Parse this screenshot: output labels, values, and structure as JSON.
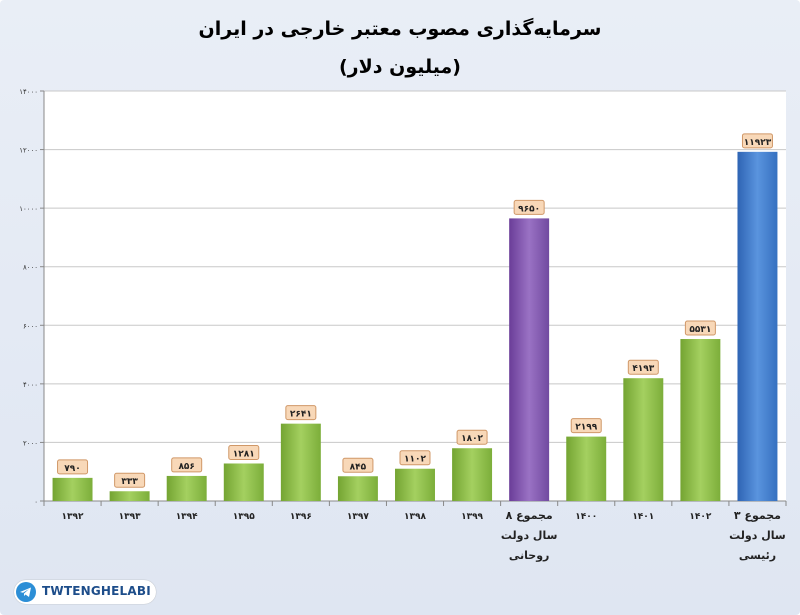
{
  "chart_data": {
    "type": "bar",
    "title": "سرمایه‌گذاری مصوب معتبر خارجی در ایران",
    "subtitle": "(میلیون دلار)",
    "categories": [
      "۱۳۹۲",
      "۱۳۹۳",
      "۱۳۹۴",
      "۱۳۹۵",
      "۱۳۹۶",
      "۱۳۹۷",
      "۱۳۹۸",
      "۱۳۹۹",
      "مجموع ۸ سال دولت روحانی",
      "۱۴۰۰",
      "۱۴۰۱",
      "۱۴۰۲",
      "مجموع ۳ سال دولت رئیسی"
    ],
    "values": [
      790,
      333,
      856,
      1281,
      2641,
      845,
      1102,
      1802,
      9650,
      2199,
      4193,
      5531,
      11923
    ],
    "data_labels": [
      "۷۹۰",
      "۳۳۳",
      "۸۵۶",
      "۱۲۸۱",
      "۲۶۴۱",
      "۸۴۵",
      "۱۱۰۲",
      "۱۸۰۲",
      "۹۶۵۰",
      "۲۱۹۹",
      "۴۱۹۳",
      "۵۵۳۱",
      "۱۱۹۲۳"
    ],
    "ylim": [
      0,
      14000
    ],
    "yticks": [
      0,
      2000,
      4000,
      6000,
      8000,
      10000,
      12000,
      14000
    ],
    "ytick_labels": [
      "۰",
      "۲۰۰۰",
      "۴۰۰۰",
      "۶۰۰۰",
      "۸۰۰۰",
      "۱۰۰۰۰",
      "۱۲۰۰۰",
      "۱۴۰۰۰"
    ],
    "grid": true,
    "colors": {
      "regular": "#8cba48",
      "rouhani_total": "#7d52a8",
      "raisi_total": "#3c78c8",
      "label_bg": "#f8d8b8",
      "label_border": "#d09868"
    }
  },
  "watermark": {
    "text": "TWTENGHELABI",
    "icon": "telegram-icon"
  }
}
